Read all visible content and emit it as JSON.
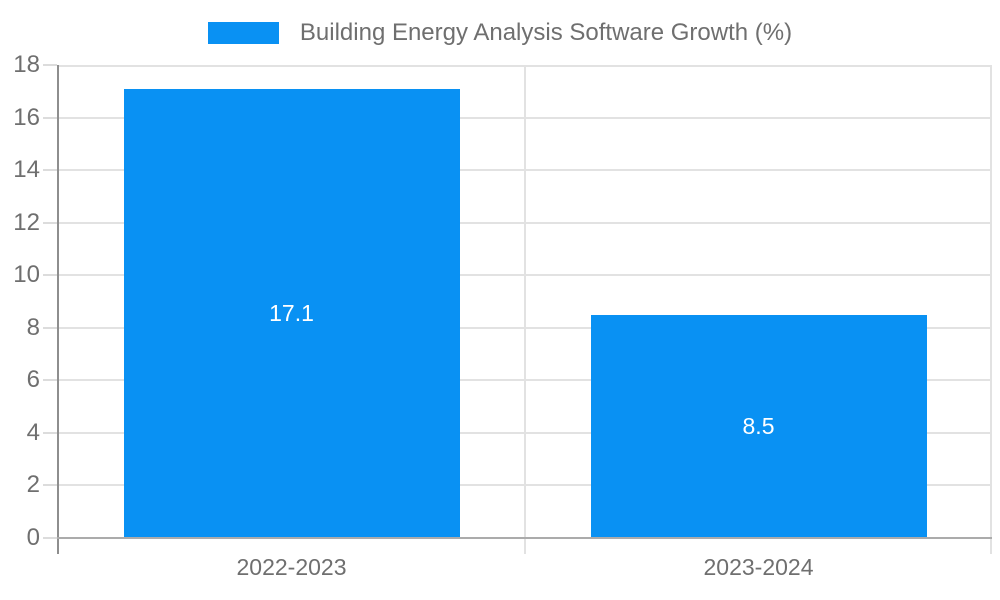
{
  "legend": {
    "label": "Building Energy Analysis Software Growth (%)",
    "swatch_color": "#0991F3"
  },
  "colors": {
    "bar": "#0991F3",
    "bar_label_text": "#FFFFFF",
    "axis_text": "#6F6F6F",
    "gridline": "#E2E2E2",
    "axis_line_left": "#8E8E8E",
    "axis_line_bottom": "#ABABAB",
    "tick_mark": "#DCDCDC",
    "background": "#FFFFFF"
  },
  "chart_data": {
    "type": "bar",
    "title": "Building Energy Analysis Software Growth (%)",
    "categories": [
      "2022-2023",
      "2023-2024"
    ],
    "values": [
      17.1,
      8.5
    ],
    "bar_value_labels": [
      "17.1",
      "8.5"
    ],
    "series": [
      {
        "name": "Building Energy Analysis Software Growth (%)",
        "values": [
          17.1,
          8.5
        ]
      }
    ],
    "xlabel": "",
    "ylabel": "",
    "ylim": [
      0,
      18
    ],
    "yticks": [
      0,
      2,
      4,
      6,
      8,
      10,
      12,
      14,
      16,
      18
    ],
    "grid": true,
    "legend_position": "top-center",
    "value_labels_position": "center-of-bar"
  }
}
